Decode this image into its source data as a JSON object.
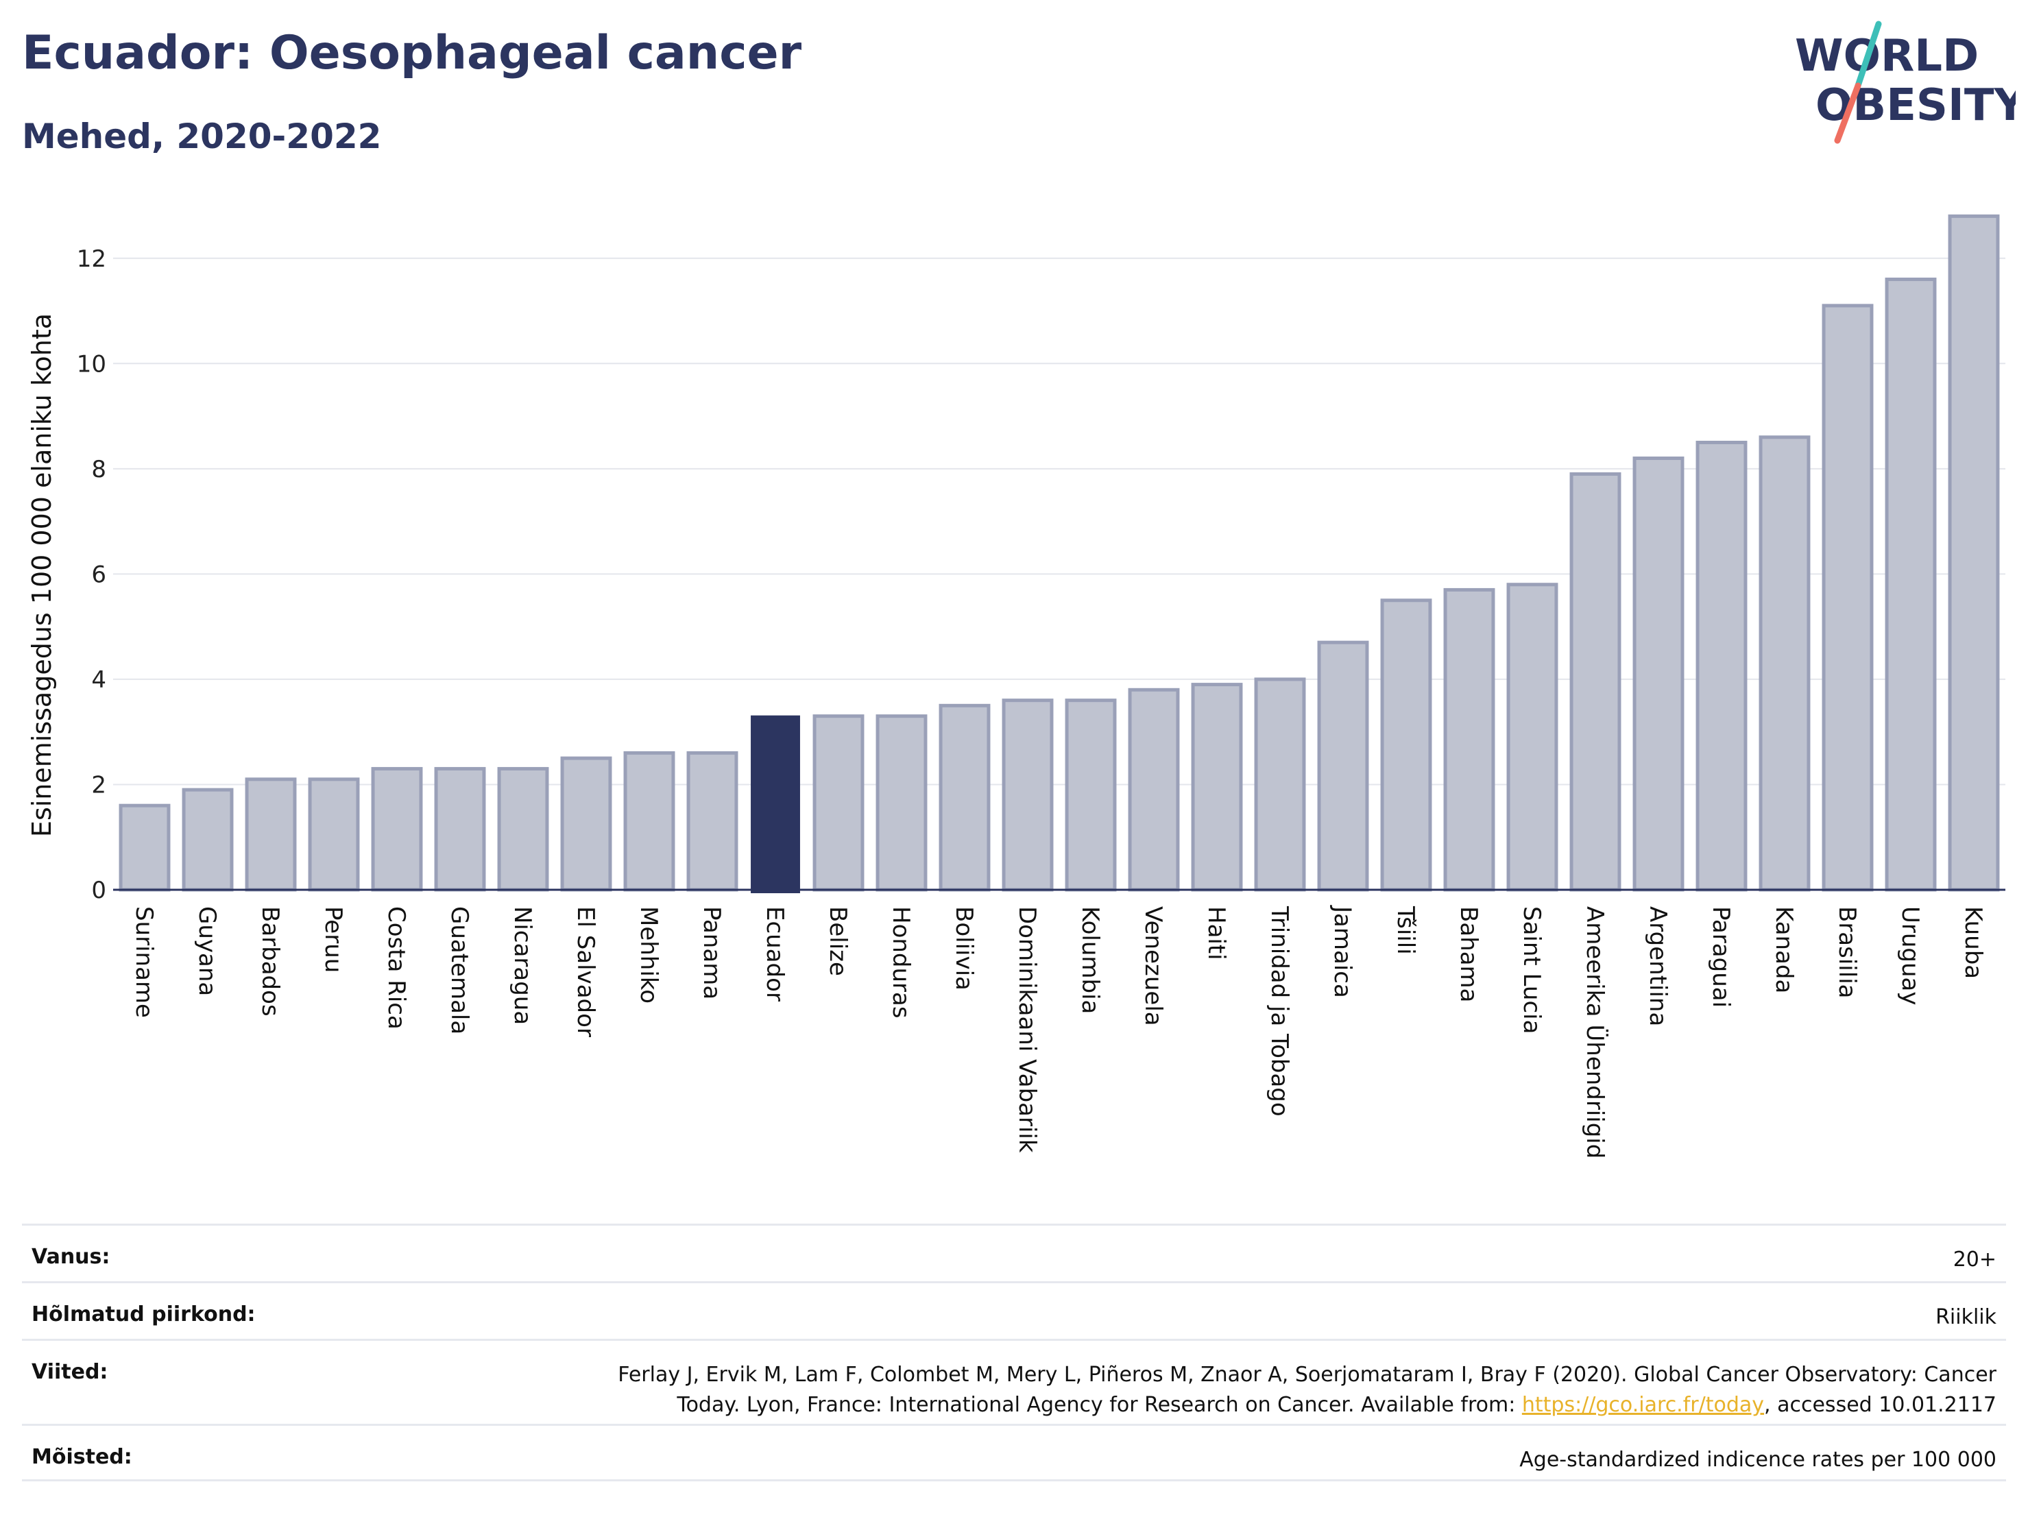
{
  "header": {
    "title": "Ecuador: Oesophageal cancer",
    "subtitle": "Mehed, 2020-2022"
  },
  "logo": {
    "line1": "WORLD",
    "line2": "OBESITY",
    "colors": {
      "text": "#2c3560",
      "slash_top": "#3dbfb8",
      "slash_bottom": "#ef6f61"
    }
  },
  "colors": {
    "bar": "#bfc3d0",
    "bar_border": "#9aa0b8",
    "highlight": "#2c3560",
    "grid": "#e4e6ec",
    "axis": "#2c3560"
  },
  "chart_data": {
    "type": "bar",
    "ylabel": "Esinemissagedus 100 000 elaniku kohta",
    "ylim": [
      0,
      13
    ],
    "yticks": [
      0,
      2,
      4,
      6,
      8,
      10,
      12
    ],
    "grid": true,
    "highlight": "Ecuador",
    "categories": [
      "Suriname",
      "Guyana",
      "Barbados",
      "Peruu",
      "Costa Rica",
      "Guatemala",
      "Nicaragua",
      "El Salvador",
      "Mehhiko",
      "Panama",
      "Ecuador",
      "Belize",
      "Honduras",
      "Boliivia",
      "Dominikaani Vabariik",
      "Kolumbia",
      "Venezuela",
      "Haiti",
      "Trinidad ja Tobago",
      "Jamaica",
      "Tšiili",
      "Bahama",
      "Saint Lucia",
      "Ameerika Ühendriigid",
      "Argentiina",
      "Paraguai",
      "Kanada",
      "Brasiilia",
      "Uruguay",
      "Kuuba"
    ],
    "values": [
      1.6,
      1.9,
      2.1,
      2.1,
      2.3,
      2.3,
      2.3,
      2.5,
      2.6,
      2.6,
      3.3,
      3.3,
      3.3,
      3.5,
      3.6,
      3.6,
      3.8,
      3.9,
      4.0,
      4.7,
      5.5,
      5.7,
      5.8,
      7.9,
      8.2,
      8.5,
      8.6,
      11.1,
      11.6,
      12.8
    ]
  },
  "meta": {
    "age_label": "Vanus:",
    "age_value": "20+",
    "region_label": "Hõlmatud piirkond:",
    "region_value": "Riiklik",
    "refs_label": "Viited:",
    "refs_line1": "Ferlay J, Ervik M, Lam F, Colombet M, Mery L, Piñeros M, Znaor A, Soerjomataram I, Bray F (2020). Global Cancer Observatory: Cancer",
    "refs_line2_pre": "Today. Lyon, France: International Agency for Research on Cancer. Available from: ",
    "refs_link": "https://gco.iarc.fr/today",
    "refs_line2_post": ", accessed 10.01.2117",
    "defs_label": "Mõisted:",
    "defs_value": "Age-standardized indicence rates per 100 000"
  }
}
